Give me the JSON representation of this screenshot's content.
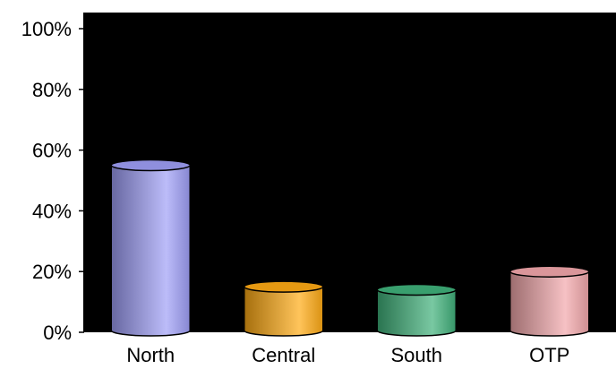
{
  "chart_data": {
    "type": "bar",
    "style": "cylinder",
    "title": "",
    "xlabel": "",
    "ylabel": "",
    "categories": [
      "North",
      "Central",
      "South",
      "OTP"
    ],
    "series": [
      {
        "values": [
          55,
          15,
          14,
          20
        ]
      }
    ],
    "ylim": [
      0,
      100
    ],
    "y_ticks": [
      "0%",
      "20%",
      "40%",
      "60%",
      "80%",
      "100%"
    ],
    "y_tick_values": [
      0,
      20,
      40,
      60,
      80,
      100
    ],
    "plot_background": "#000000",
    "grid": false,
    "legend": "none",
    "bar_colors": [
      "#9f9ff7",
      "#ffaa14",
      "#3fb17a",
      "#f2a7ab"
    ]
  }
}
